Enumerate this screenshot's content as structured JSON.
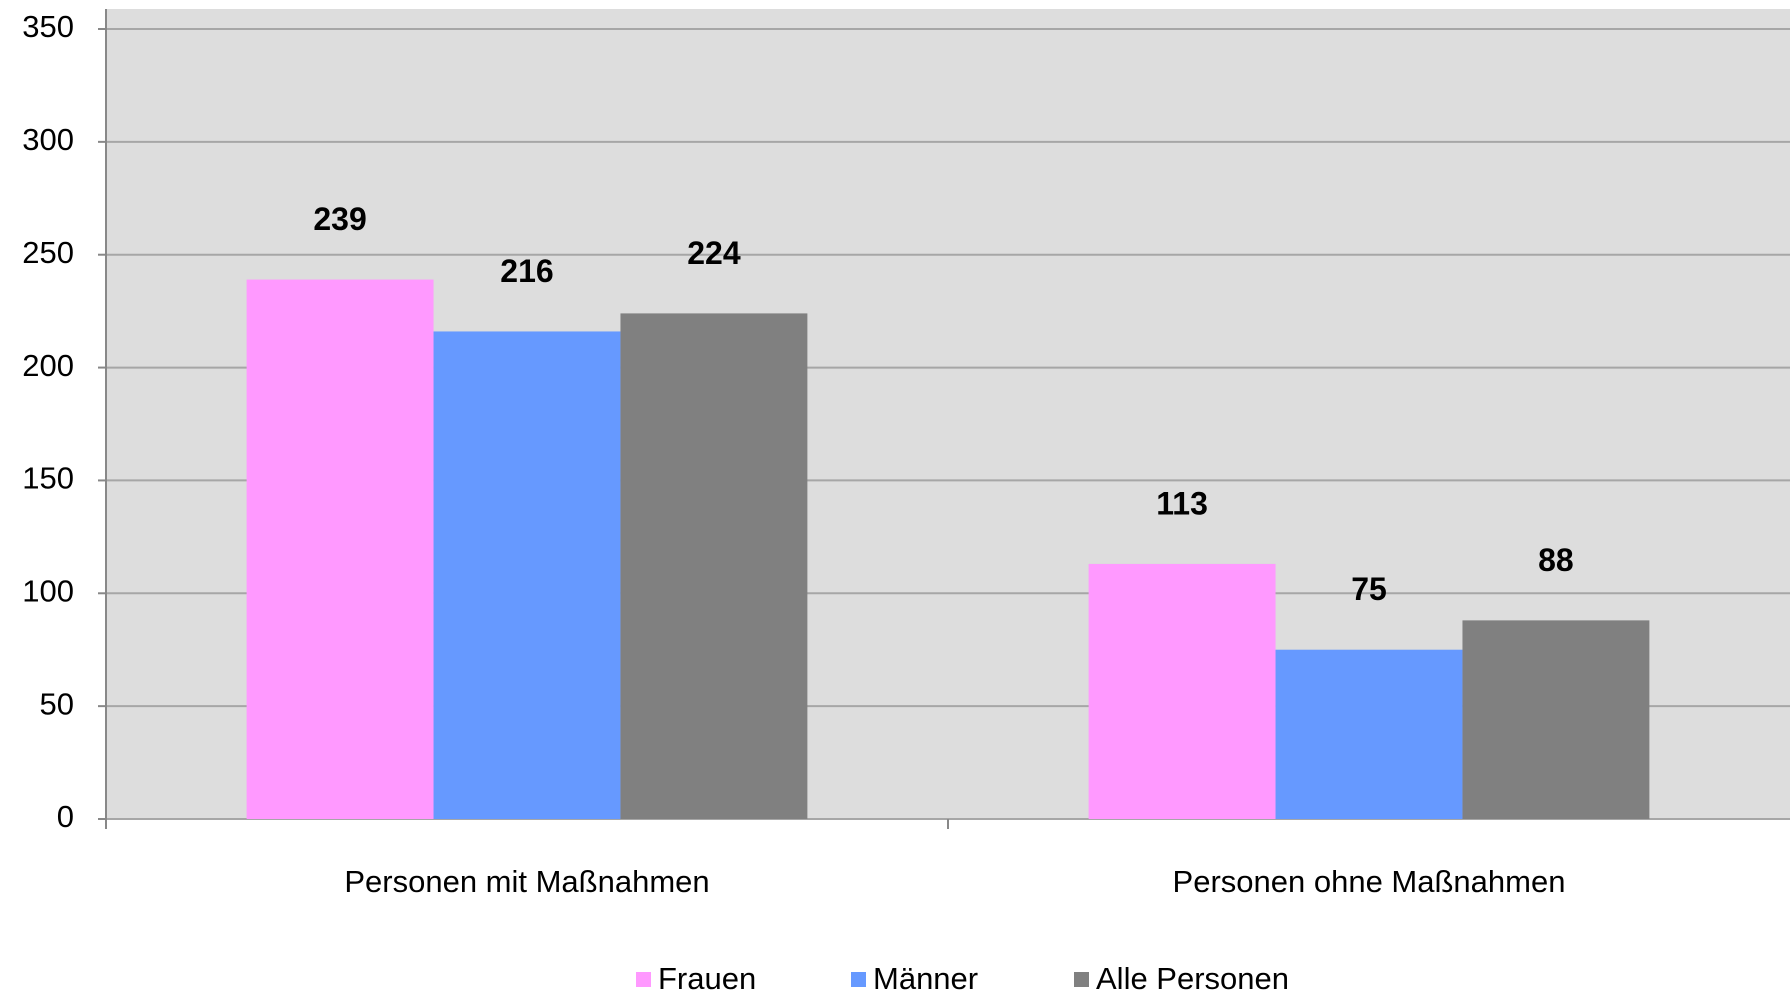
{
  "chart_data": {
    "type": "bar",
    "categories": [
      "Personen mit Maßnahmen",
      "Personen ohne Maßnahmen"
    ],
    "series": [
      {
        "name": "Frauen",
        "color": "#ff99ff",
        "values": [
          239,
          113
        ]
      },
      {
        "name": "Männer",
        "color": "#6699ff",
        "values": [
          216,
          75
        ]
      },
      {
        "name": "Alle Personen",
        "color": "#808080",
        "values": [
          224,
          88
        ]
      }
    ],
    "ylim": [
      0,
      350
    ],
    "yticks": [
      0,
      50,
      100,
      150,
      200,
      250,
      300,
      350
    ],
    "grid": true,
    "legend": "bottom"
  }
}
